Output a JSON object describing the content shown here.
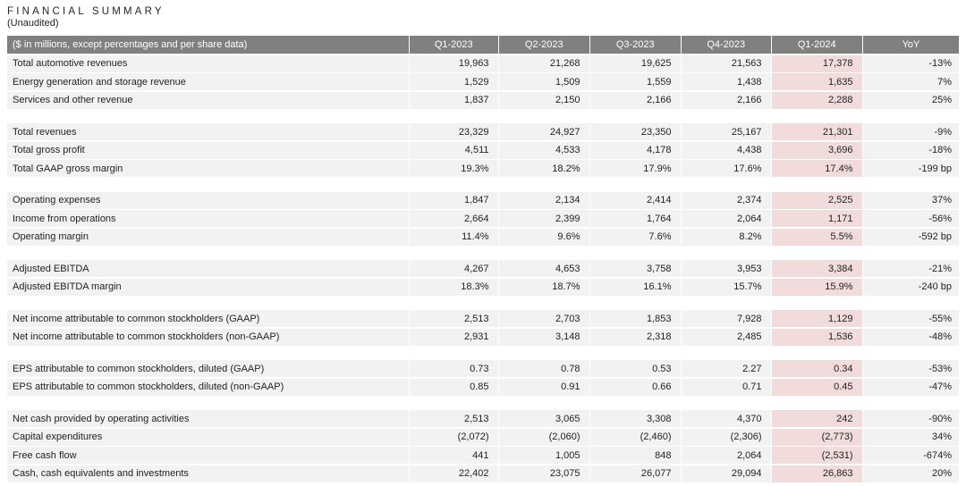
{
  "title": "FINANCIAL SUMMARY",
  "subtitle": "(Unaudited)",
  "colors": {
    "header_bg": "#808080",
    "header_text": "#ffffff",
    "row_bg": "#f2f2f2",
    "highlight_bg": "#f2dcdb",
    "text": "#1f1f1f"
  },
  "table": {
    "label_header": "($ in millions, except percentages and per share data)",
    "columns": [
      "Q1-2023",
      "Q2-2023",
      "Q3-2023",
      "Q4-2023",
      "Q1-2024",
      "YoY"
    ],
    "highlight_column_index": 4,
    "groups": [
      {
        "rows": [
          {
            "label": "Total automotive revenues",
            "values": [
              "19,963",
              "21,268",
              "19,625",
              "21,563",
              "17,378",
              "-13%"
            ]
          },
          {
            "label": "Energy generation and storage revenue",
            "values": [
              "1,529",
              "1,509",
              "1,559",
              "1,438",
              "1,635",
              "7%"
            ]
          },
          {
            "label": "Services and other revenue",
            "values": [
              "1,837",
              "2,150",
              "2,166",
              "2,166",
              "2,288",
              "25%"
            ]
          }
        ]
      },
      {
        "rows": [
          {
            "label": "Total revenues",
            "values": [
              "23,329",
              "24,927",
              "23,350",
              "25,167",
              "21,301",
              "-9%"
            ]
          },
          {
            "label": "Total gross profit",
            "values": [
              "4,511",
              "4,533",
              "4,178",
              "4,438",
              "3,696",
              "-18%"
            ]
          },
          {
            "label": "Total GAAP gross margin",
            "values": [
              "19.3%",
              "18.2%",
              "17.9%",
              "17.6%",
              "17.4%",
              "-199 bp"
            ]
          }
        ]
      },
      {
        "rows": [
          {
            "label": "Operating expenses",
            "values": [
              "1,847",
              "2,134",
              "2,414",
              "2,374",
              "2,525",
              "37%"
            ]
          },
          {
            "label": "Income from operations",
            "values": [
              "2,664",
              "2,399",
              "1,764",
              "2,064",
              "1,171",
              "-56%"
            ]
          },
          {
            "label": "Operating margin",
            "values": [
              "11.4%",
              "9.6%",
              "7.6%",
              "8.2%",
              "5.5%",
              "-592 bp"
            ]
          }
        ]
      },
      {
        "rows": [
          {
            "label": "Adjusted EBITDA",
            "values": [
              "4,267",
              "4,653",
              "3,758",
              "3,953",
              "3,384",
              "-21%"
            ]
          },
          {
            "label": "Adjusted EBITDA margin",
            "values": [
              "18.3%",
              "18.7%",
              "16.1%",
              "15.7%",
              "15.9%",
              "-240 bp"
            ]
          }
        ]
      },
      {
        "rows": [
          {
            "label": "Net income attributable to common stockholders (GAAP)",
            "values": [
              "2,513",
              "2,703",
              "1,853",
              "7,928",
              "1,129",
              "-55%"
            ]
          },
          {
            "label": "Net income attributable to common stockholders (non-GAAP)",
            "values": [
              "2,931",
              "3,148",
              "2,318",
              "2,485",
              "1,536",
              "-48%"
            ]
          }
        ]
      },
      {
        "rows": [
          {
            "label": "EPS attributable to common stockholders, diluted (GAAP)",
            "values": [
              "0.73",
              "0.78",
              "0.53",
              "2.27",
              "0.34",
              "-53%"
            ]
          },
          {
            "label": "EPS attributable to common stockholders, diluted (non-GAAP)",
            "values": [
              "0.85",
              "0.91",
              "0.66",
              "0.71",
              "0.45",
              "-47%"
            ]
          }
        ]
      },
      {
        "rows": [
          {
            "label": "Net cash provided by operating activities",
            "values": [
              "2,513",
              "3,065",
              "3,308",
              "4,370",
              "242",
              "-90%"
            ]
          },
          {
            "label": "Capital expenditures",
            "values": [
              "(2,072)",
              "(2,060)",
              "(2,460)",
              "(2,306)",
              "(2,773)",
              "34%"
            ]
          },
          {
            "label": "Free cash flow",
            "values": [
              "441",
              "1,005",
              "848",
              "2,064",
              "(2,531)",
              "-674%"
            ]
          },
          {
            "label": "Cash, cash equivalents and investments",
            "values": [
              "22,402",
              "23,075",
              "26,077",
              "29,094",
              "26,863",
              "20%"
            ]
          }
        ]
      }
    ]
  }
}
